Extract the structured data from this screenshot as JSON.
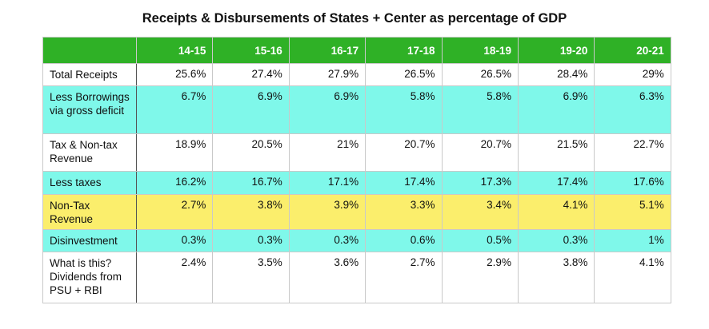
{
  "title": "Receipts & Disbursements of States + Center as percentage of GDP",
  "colors": {
    "header_bg": "#2fb126",
    "cyan_row": "#7ff8ea",
    "yellow_row": "#fbee6c"
  },
  "table": {
    "columns": [
      "14-15",
      "15-16",
      "16-17",
      "17-18",
      "18-19",
      "19-20",
      "20-21"
    ],
    "rows": [
      {
        "label": "Total Receipts",
        "values": [
          "25.6%",
          "27.4%",
          "27.9%",
          "26.5%",
          "26.5%",
          "28.4%",
          "29%"
        ]
      },
      {
        "label": "Less Borrowings via gross deficit",
        "values": [
          "6.7%",
          "6.9%",
          "6.9%",
          "5.8%",
          "5.8%",
          "6.9%",
          "6.3%"
        ]
      },
      {
        "label": "Tax & Non-tax Revenue",
        "values": [
          "18.9%",
          "20.5%",
          "21%",
          "20.7%",
          "20.7%",
          "21.5%",
          "22.7%"
        ]
      },
      {
        "label": "Less taxes",
        "values": [
          "16.2%",
          "16.7%",
          "17.1%",
          "17.4%",
          "17.3%",
          "17.4%",
          "17.6%"
        ]
      },
      {
        "label": "Non-Tax Revenue",
        "values": [
          "2.7%",
          "3.8%",
          "3.9%",
          "3.3%",
          "3.4%",
          "4.1%",
          "5.1%"
        ]
      },
      {
        "label": "Disinvestment",
        "values": [
          "0.3%",
          "0.3%",
          "0.3%",
          "0.6%",
          "0.5%",
          "0.3%",
          "1%"
        ]
      },
      {
        "label": "What is this? Dividends from PSU + RBI",
        "values": [
          "2.4%",
          "3.5%",
          "3.6%",
          "2.7%",
          "2.9%",
          "3.8%",
          "4.1%"
        ]
      }
    ]
  }
}
